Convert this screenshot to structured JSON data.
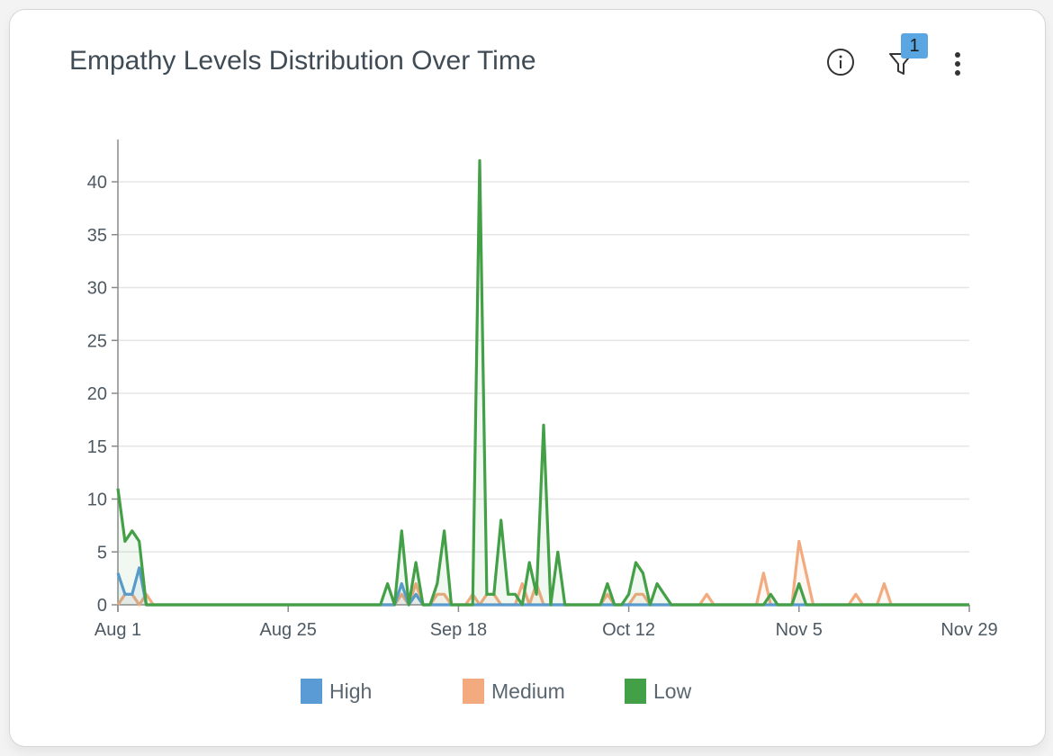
{
  "card": {
    "title": "Empathy Levels Distribution Over Time",
    "filter_badge": "1",
    "info_icon": "info-icon",
    "filter_icon": "filter-icon",
    "more_icon": "more-vertical-icon"
  },
  "colors": {
    "High": "#5b9bd5",
    "Medium": "#f2aa7e",
    "Low": "#43a047",
    "grid": "#e6e6e6",
    "axis": "#8a8a8a"
  },
  "chart_data": {
    "type": "line",
    "x_axis_type": "date",
    "x_range": [
      "2024-08-01",
      "2024-11-29"
    ],
    "xticks": [
      "Aug 1",
      "Aug 25",
      "Sep 18",
      "Oct 12",
      "Nov 5",
      "Nov 29"
    ],
    "ylim": [
      0,
      44
    ],
    "yticks": [
      0,
      5,
      10,
      15,
      20,
      25,
      30,
      35,
      40
    ],
    "grid": true,
    "legend_position": "bottom",
    "series": [
      {
        "name": "High",
        "points": [
          [
            "2024-08-01",
            3
          ],
          [
            "2024-08-02",
            1
          ],
          [
            "2024-08-03",
            1
          ],
          [
            "2024-08-04",
            3.5
          ],
          [
            "2024-08-05",
            0
          ],
          [
            "2024-08-15",
            0
          ],
          [
            "2024-09-01",
            0
          ],
          [
            "2024-09-09",
            0
          ],
          [
            "2024-09-10",
            2
          ],
          [
            "2024-09-11",
            0
          ],
          [
            "2024-09-12",
            1
          ],
          [
            "2024-09-13",
            0
          ],
          [
            "2024-10-01",
            0
          ],
          [
            "2024-11-29",
            0
          ]
        ]
      },
      {
        "name": "Medium",
        "points": [
          [
            "2024-08-01",
            0
          ],
          [
            "2024-08-02",
            1
          ],
          [
            "2024-08-03",
            1
          ],
          [
            "2024-08-04",
            0
          ],
          [
            "2024-08-05",
            1
          ],
          [
            "2024-08-06",
            0
          ],
          [
            "2024-08-20",
            0
          ],
          [
            "2024-09-08",
            0
          ],
          [
            "2024-09-09",
            0
          ],
          [
            "2024-09-10",
            1
          ],
          [
            "2024-09-11",
            0
          ],
          [
            "2024-09-12",
            2
          ],
          [
            "2024-09-13",
            0
          ],
          [
            "2024-09-14",
            0
          ],
          [
            "2024-09-15",
            1
          ],
          [
            "2024-09-16",
            1
          ],
          [
            "2024-09-17",
            0
          ],
          [
            "2024-09-18",
            0
          ],
          [
            "2024-09-19",
            0
          ],
          [
            "2024-09-20",
            1
          ],
          [
            "2024-09-21",
            0
          ],
          [
            "2024-09-22",
            1
          ],
          [
            "2024-09-23",
            1
          ],
          [
            "2024-09-24",
            0
          ],
          [
            "2024-09-25",
            0
          ],
          [
            "2024-09-26",
            0
          ],
          [
            "2024-09-27",
            2
          ],
          [
            "2024-09-28",
            0
          ],
          [
            "2024-09-29",
            2
          ],
          [
            "2024-09-30",
            0
          ],
          [
            "2024-10-08",
            0
          ],
          [
            "2024-10-09",
            1
          ],
          [
            "2024-10-10",
            0
          ],
          [
            "2024-10-12",
            0
          ],
          [
            "2024-10-13",
            1
          ],
          [
            "2024-10-14",
            1
          ],
          [
            "2024-10-15",
            0
          ],
          [
            "2024-10-22",
            0
          ],
          [
            "2024-10-23",
            1
          ],
          [
            "2024-10-24",
            0
          ],
          [
            "2024-10-30",
            0
          ],
          [
            "2024-10-31",
            3
          ],
          [
            "2024-11-01",
            0
          ],
          [
            "2024-11-04",
            0
          ],
          [
            "2024-11-05",
            6
          ],
          [
            "2024-11-07",
            0
          ],
          [
            "2024-11-12",
            0
          ],
          [
            "2024-11-13",
            1
          ],
          [
            "2024-11-14",
            0
          ],
          [
            "2024-11-16",
            0
          ],
          [
            "2024-11-17",
            2
          ],
          [
            "2024-11-18",
            0
          ],
          [
            "2024-11-29",
            0
          ]
        ]
      },
      {
        "name": "Low",
        "points": [
          [
            "2024-08-01",
            11
          ],
          [
            "2024-08-02",
            6
          ],
          [
            "2024-08-03",
            7
          ],
          [
            "2024-08-04",
            6
          ],
          [
            "2024-08-05",
            0
          ],
          [
            "2024-08-20",
            0
          ],
          [
            "2024-09-07",
            0
          ],
          [
            "2024-09-08",
            2
          ],
          [
            "2024-09-09",
            0
          ],
          [
            "2024-09-10",
            7
          ],
          [
            "2024-09-11",
            0
          ],
          [
            "2024-09-12",
            4
          ],
          [
            "2024-09-13",
            0
          ],
          [
            "2024-09-14",
            0
          ],
          [
            "2024-09-15",
            2
          ],
          [
            "2024-09-16",
            7
          ],
          [
            "2024-09-17",
            0
          ],
          [
            "2024-09-18",
            0
          ],
          [
            "2024-09-19",
            0
          ],
          [
            "2024-09-20",
            0
          ],
          [
            "2024-09-21",
            42
          ],
          [
            "2024-09-22",
            1
          ],
          [
            "2024-09-23",
            1
          ],
          [
            "2024-09-24",
            8
          ],
          [
            "2024-09-25",
            1
          ],
          [
            "2024-09-26",
            1
          ],
          [
            "2024-09-27",
            0
          ],
          [
            "2024-09-28",
            4
          ],
          [
            "2024-09-29",
            1
          ],
          [
            "2024-09-30",
            17
          ],
          [
            "2024-10-01",
            0
          ],
          [
            "2024-10-02",
            5
          ],
          [
            "2024-10-03",
            0
          ],
          [
            "2024-10-08",
            0
          ],
          [
            "2024-10-09",
            2
          ],
          [
            "2024-10-10",
            0
          ],
          [
            "2024-10-11",
            0
          ],
          [
            "2024-10-12",
            1
          ],
          [
            "2024-10-13",
            4
          ],
          [
            "2024-10-14",
            3
          ],
          [
            "2024-10-15",
            0
          ],
          [
            "2024-10-16",
            2
          ],
          [
            "2024-10-17",
            1
          ],
          [
            "2024-10-18",
            0
          ],
          [
            "2024-10-31",
            0
          ],
          [
            "2024-11-01",
            1
          ],
          [
            "2024-11-02",
            0
          ],
          [
            "2024-11-04",
            0
          ],
          [
            "2024-11-05",
            2
          ],
          [
            "2024-11-06",
            0
          ],
          [
            "2024-11-29",
            0
          ]
        ]
      }
    ]
  }
}
